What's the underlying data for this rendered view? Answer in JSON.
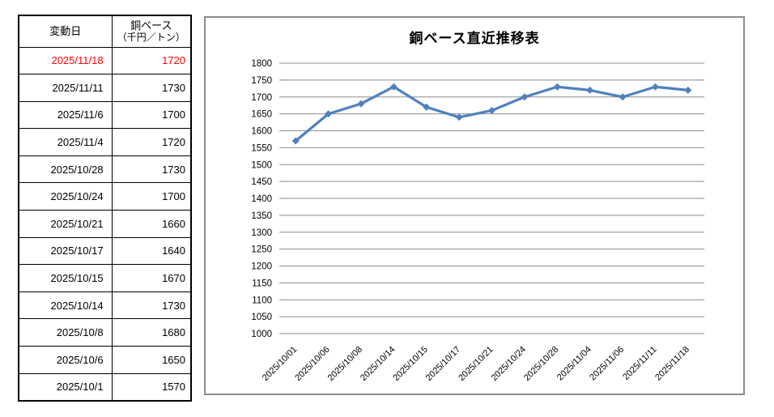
{
  "table": {
    "headers": {
      "date": "変動日",
      "value_line1": "銅ベース",
      "value_line2": "（千円／トン）"
    },
    "rows": [
      {
        "date": "2025/11/18",
        "value": "1720",
        "highlight": true
      },
      {
        "date": "2025/11/11",
        "value": "1730",
        "highlight": false
      },
      {
        "date": "2025/11/6",
        "value": "1700",
        "highlight": false
      },
      {
        "date": "2025/11/4",
        "value": "1720",
        "highlight": false
      },
      {
        "date": "2025/10/28",
        "value": "1730",
        "highlight": false
      },
      {
        "date": "2025/10/24",
        "value": "1700",
        "highlight": false
      },
      {
        "date": "2025/10/21",
        "value": "1660",
        "highlight": false
      },
      {
        "date": "2025/10/17",
        "value": "1640",
        "highlight": false
      },
      {
        "date": "2025/10/15",
        "value": "1670",
        "highlight": false
      },
      {
        "date": "2025/10/14",
        "value": "1730",
        "highlight": false
      },
      {
        "date": "2025/10/8",
        "value": "1680",
        "highlight": false
      },
      {
        "date": "2025/10/6",
        "value": "1650",
        "highlight": false
      },
      {
        "date": "2025/10/1",
        "value": "1570",
        "highlight": false
      }
    ],
    "highlight_color": "#FF0000"
  },
  "chart_data": {
    "type": "line",
    "title": "銅ベース直近推移表",
    "categories": [
      "2025/10/01",
      "2025/10/06",
      "2025/10/08",
      "2025/10/14",
      "2025/10/15",
      "2025/10/17",
      "2025/10/21",
      "2025/10/24",
      "2025/10/28",
      "2025/11/04",
      "2025/11/06",
      "2025/11/11",
      "2025/11/18"
    ],
    "values": [
      1570,
      1650,
      1680,
      1730,
      1670,
      1640,
      1660,
      1700,
      1730,
      1720,
      1700,
      1730,
      1720
    ],
    "xlabel": "",
    "ylabel": "",
    "ylim": [
      1000,
      1800
    ],
    "ytick_step": 50,
    "grid": true,
    "legend_position": "none",
    "line_color": "#4F81BD",
    "grid_color": "#8E8E8E",
    "axis_text_color": "#000000",
    "marker": "diamond"
  }
}
